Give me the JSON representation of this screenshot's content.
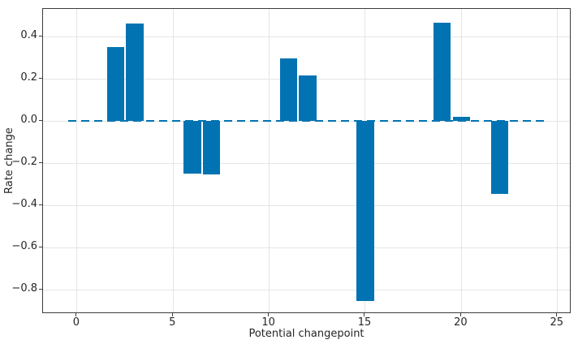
{
  "chart_data": {
    "type": "bar",
    "title": "",
    "xlabel": "Potential changepoint",
    "ylabel": "Rate change",
    "x": [
      0,
      1,
      2,
      3,
      4,
      5,
      6,
      7,
      8,
      9,
      10,
      11,
      12,
      13,
      14,
      15,
      16,
      17,
      18,
      19,
      20,
      21,
      22,
      23,
      24
    ],
    "values": [
      0,
      0,
      0.35,
      0.46,
      0,
      0,
      -0.25,
      -0.255,
      0,
      0,
      0,
      0.295,
      0.215,
      0,
      0,
      -0.855,
      0,
      0,
      0,
      0.465,
      0.02,
      0,
      -0.345,
      0,
      0
    ],
    "bar_width": 0.9,
    "bar_color": "#0173b2",
    "xlim": [
      -1.77,
      25.73
    ],
    "ylim": [
      -0.915,
      0.531
    ],
    "xticks": [
      0,
      5,
      10,
      15,
      20,
      25
    ],
    "xtick_labels": [
      "0",
      "5",
      "10",
      "15",
      "20",
      "25"
    ],
    "yticks": [
      0.4,
      0.2,
      0.0,
      -0.2,
      -0.4,
      -0.6,
      -0.8
    ],
    "ytick_labels": [
      "0.4",
      "0.2",
      "0.0",
      "−0.2",
      "−0.4",
      "−0.6",
      "−0.8"
    ],
    "grid": true,
    "legend": null,
    "zero_line": {
      "y": 0,
      "x_start": -0.45,
      "x_end": 24.45,
      "style": "dashed",
      "color": "#0173b2"
    }
  }
}
